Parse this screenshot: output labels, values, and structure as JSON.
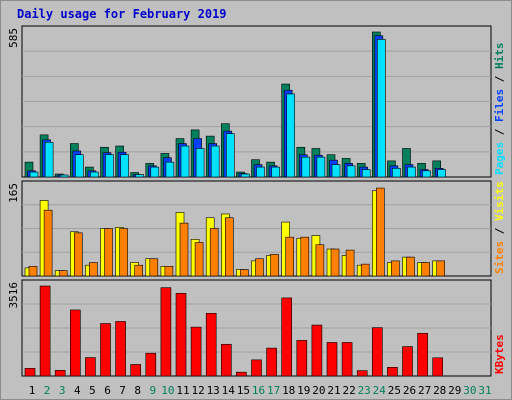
{
  "title": "Daily usage for February 2019",
  "colors": {
    "background": "#c0c0c0",
    "hits": "#00805c",
    "files": "#0040ff",
    "pages": "#00e0ff",
    "visits": "#ffff00",
    "sites": "#ff8000",
    "kbytes": "#ff0000",
    "weekend_day": "#00805c",
    "weekday": "#000000"
  },
  "chart_data": [
    {
      "type": "bar",
      "panel": "top",
      "ymax_label": "585",
      "ylim": [
        0,
        585
      ],
      "legend": [
        {
          "key": "pages",
          "label": "Pages"
        },
        {
          "key": "sep1",
          "label": " / "
        },
        {
          "key": "files",
          "label": "Files"
        },
        {
          "key": "sep2",
          "label": " / "
        },
        {
          "key": "hits",
          "label": "Hits"
        }
      ],
      "series": [
        {
          "name": "Hits",
          "color": "#00805c",
          "values": [
            60,
            170,
            12,
            135,
            40,
            120,
            125,
            18,
            55,
            95,
            155,
            190,
            165,
            215,
            20,
            70,
            60,
            375,
            120,
            115,
            90,
            75,
            55,
            585,
            65,
            115,
            55,
            65,
            0,
            0,
            0
          ]
        },
        {
          "name": "Files",
          "color": "#0040ff",
          "values": [
            25,
            150,
            8,
            105,
            25,
            98,
            100,
            10,
            45,
            78,
            135,
            155,
            135,
            185,
            14,
            50,
            45,
            350,
            90,
            88,
            68,
            55,
            40,
            570,
            45,
            50,
            30,
            35,
            0,
            0,
            0
          ]
        },
        {
          "name": "Pages",
          "color": "#00e0ff",
          "values": [
            20,
            140,
            8,
            90,
            20,
            90,
            90,
            10,
            40,
            60,
            125,
            115,
            125,
            175,
            12,
            40,
            40,
            335,
            80,
            80,
            50,
            45,
            30,
            555,
            35,
            40,
            25,
            30,
            0,
            0,
            0
          ]
        }
      ]
    },
    {
      "type": "bar",
      "panel": "middle",
      "ymax_label": "165",
      "ylim": [
        0,
        165
      ],
      "legend": [
        {
          "key": "sites",
          "label": "Sites"
        },
        {
          "key": "sep1",
          "label": " / "
        },
        {
          "key": "visits",
          "label": "Visits"
        }
      ],
      "series": [
        {
          "name": "Visits",
          "color": "#ffff00",
          "values": [
            15,
            140,
            10,
            82,
            20,
            88,
            90,
            25,
            32,
            18,
            118,
            68,
            108,
            115,
            12,
            28,
            38,
            100,
            70,
            75,
            50,
            38,
            20,
            158,
            25,
            35,
            25,
            28,
            0,
            0,
            0
          ]
        },
        {
          "name": "Sites",
          "color": "#ff8000",
          "values": [
            18,
            122,
            10,
            80,
            25,
            88,
            88,
            20,
            32,
            18,
            98,
            62,
            88,
            108,
            12,
            32,
            40,
            72,
            72,
            58,
            50,
            48,
            22,
            163,
            28,
            35,
            25,
            28,
            0,
            0,
            0
          ]
        }
      ]
    },
    {
      "type": "bar",
      "panel": "bottom",
      "ymax_label": "3516",
      "ylim": [
        0,
        3516
      ],
      "legend": [
        {
          "key": "kbytes",
          "label": "KBytes"
        }
      ],
      "series": [
        {
          "name": "KBytes",
          "color": "#ff0000",
          "values": [
            300,
            3516,
            220,
            2580,
            720,
            2050,
            2130,
            450,
            890,
            3450,
            3230,
            1910,
            2450,
            1240,
            150,
            630,
            1090,
            3050,
            1390,
            1990,
            1310,
            1310,
            210,
            1890,
            340,
            1150,
            1670,
            710,
            0,
            0,
            0
          ]
        }
      ]
    }
  ],
  "days": [
    "1",
    "2",
    "3",
    "4",
    "5",
    "6",
    "7",
    "8",
    "9",
    "10",
    "11",
    "12",
    "13",
    "14",
    "15",
    "16",
    "17",
    "18",
    "19",
    "20",
    "21",
    "22",
    "23",
    "24",
    "25",
    "26",
    "27",
    "28",
    "29",
    "30",
    "31"
  ],
  "weekend_days": [
    2,
    3,
    9,
    10,
    16,
    17,
    23,
    24,
    30,
    31
  ]
}
